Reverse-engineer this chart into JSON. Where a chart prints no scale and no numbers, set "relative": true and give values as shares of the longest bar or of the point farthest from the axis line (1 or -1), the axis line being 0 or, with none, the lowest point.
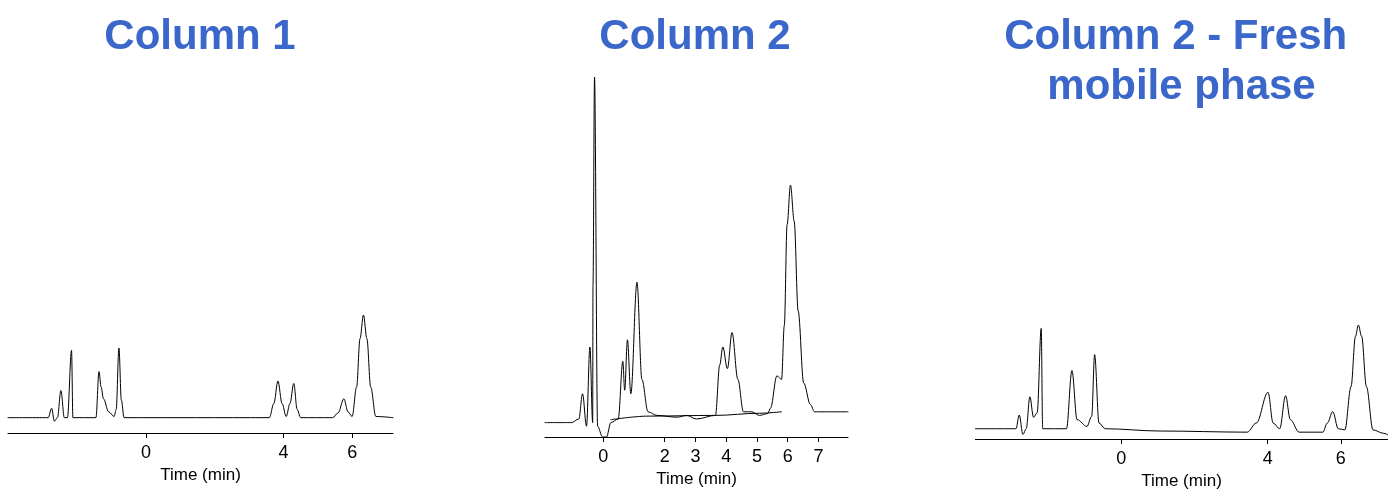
{
  "chart_data": [
    {
      "type": "line",
      "title": "Column 1",
      "xlabel": "Time (min)",
      "relative": true,
      "xlim": [
        -4.02,
        7.19
      ],
      "xticks": [
        0,
        4,
        6
      ],
      "series": [
        {
          "color": "#000000",
          "x": [
            -4.02,
            -2.85,
            -2.75,
            -2.67,
            -2.58,
            -2.48,
            -2.38,
            -2.29,
            -2.17,
            -2.13,
            -1.46,
            -1.37,
            -1.31,
            -1.24,
            -1.09,
            -0.93,
            -0.87,
            -0.79,
            -0.72,
            -0.64,
            3.59,
            3.72,
            3.84,
            3.96,
            4.08,
            4.19,
            4.3,
            4.4,
            4.5,
            5.43,
            5.59,
            5.76,
            5.88,
            6.0,
            6.13,
            6.23,
            6.33,
            6.43,
            6.54,
            6.69,
            7.19
          ],
          "values": [
            0.13,
            0.13,
            0.21,
            0.1,
            0.13,
            0.36,
            0.13,
            0.13,
            0.7,
            0.13,
            0.13,
            0.52,
            0.39,
            0.29,
            0.18,
            0.14,
            0.2,
            0.72,
            0.28,
            0.13,
            0.13,
            0.25,
            0.44,
            0.25,
            0.14,
            0.25,
            0.42,
            0.2,
            0.13,
            0.13,
            0.17,
            0.29,
            0.18,
            0.14,
            0.39,
            0.8,
            1,
            0.8,
            0.39,
            0.14,
            0.13
          ]
        }
      ]
    },
    {
      "type": "line",
      "title": "Column 2",
      "xlabel": "Time (min)",
      "relative": true,
      "xlim": [
        -1.89,
        7.96
      ],
      "xticks": [
        0,
        2,
        3,
        4,
        5,
        6,
        7
      ],
      "series": [
        {
          "color": "#000000",
          "x": [
            -1.89,
            -1.03,
            -0.79,
            -0.67,
            -0.54,
            -0.43,
            -0.34,
            -0.33,
            -0.28,
            -0.18,
            -0.02,
            0.11,
            0.25,
            0.49,
            0.64,
            0.7,
            0.79,
            0.9,
            1.1,
            1.26,
            1.46,
            1.75,
            2.4,
            2.72,
            3.03,
            3.65,
            3.79,
            3.89,
            4.04,
            4.19,
            4.38,
            4.56,
            4.83,
            5.08,
            5.35,
            5.44,
            5.65,
            5.8,
            5.89,
            5.98,
            6.09,
            6.21,
            6.34,
            6.52,
            6.74,
            6.87,
            7.96
          ],
          "values": [
            0.04,
            0.04,
            0.05,
            0.12,
            0.03,
            0.25,
            0.04,
            0.42,
            1,
            0.03,
            0,
            0,
            0.04,
            0.05,
            0.21,
            0.13,
            0.27,
            0.12,
            0.43,
            0.16,
            0.07,
            0.06,
            0.055,
            0.06,
            0.05,
            0.06,
            0.2,
            0.25,
            0.19,
            0.29,
            0.16,
            0.07,
            0.07,
            0.06,
            0.065,
            0.08,
            0.17,
            0.16,
            0.31,
            0.59,
            0.7,
            0.6,
            0.35,
            0.15,
            0.09,
            0.07,
            0.07
          ]
        },
        {
          "color": "#000000",
          "x": [
            0.25,
            1.46,
            3.65,
            5.08,
            5.8
          ],
          "values": [
            0.048,
            0.058,
            0.06,
            0.066,
            0.07
          ]
        }
      ]
    },
    {
      "type": "line",
      "title": "Column 2 - Fresh mobile phase",
      "xlabel": "Time (min)",
      "relative": true,
      "xlim": [
        -4.0,
        7.29
      ],
      "xticks": [
        0,
        4,
        6
      ],
      "series": [
        {
          "color": "#000000",
          "x": [
            -4.0,
            -2.88,
            -2.79,
            -2.69,
            -2.6,
            -2.5,
            -2.4,
            -2.3,
            -2.19,
            -2.15,
            -1.5,
            -1.35,
            -1.21,
            -0.94,
            -0.81,
            -0.73,
            -0.61,
            -0.44,
            1.06,
            3.44,
            3.69,
            4.01,
            4.15,
            4.33,
            4.49,
            4.62,
            4.86,
            5.51,
            5.63,
            5.78,
            5.93,
            6.11,
            6.28,
            6.4,
            6.48,
            6.57,
            6.7,
            6.88,
            7.17,
            7.29
          ],
          "values": [
            0.09,
            0.09,
            0.21,
            0.04,
            0.09,
            0.37,
            0.19,
            0.23,
            0.97,
            0.09,
            0.09,
            0.6,
            0.17,
            0.11,
            0.2,
            0.74,
            0.14,
            0.09,
            0.07,
            0.06,
            0.14,
            0.41,
            0.14,
            0.09,
            0.38,
            0.17,
            0.06,
            0.06,
            0.14,
            0.24,
            0.09,
            0.08,
            0.46,
            0.9,
            1,
            0.9,
            0.46,
            0.08,
            0.05,
            0.035
          ]
        }
      ]
    }
  ]
}
